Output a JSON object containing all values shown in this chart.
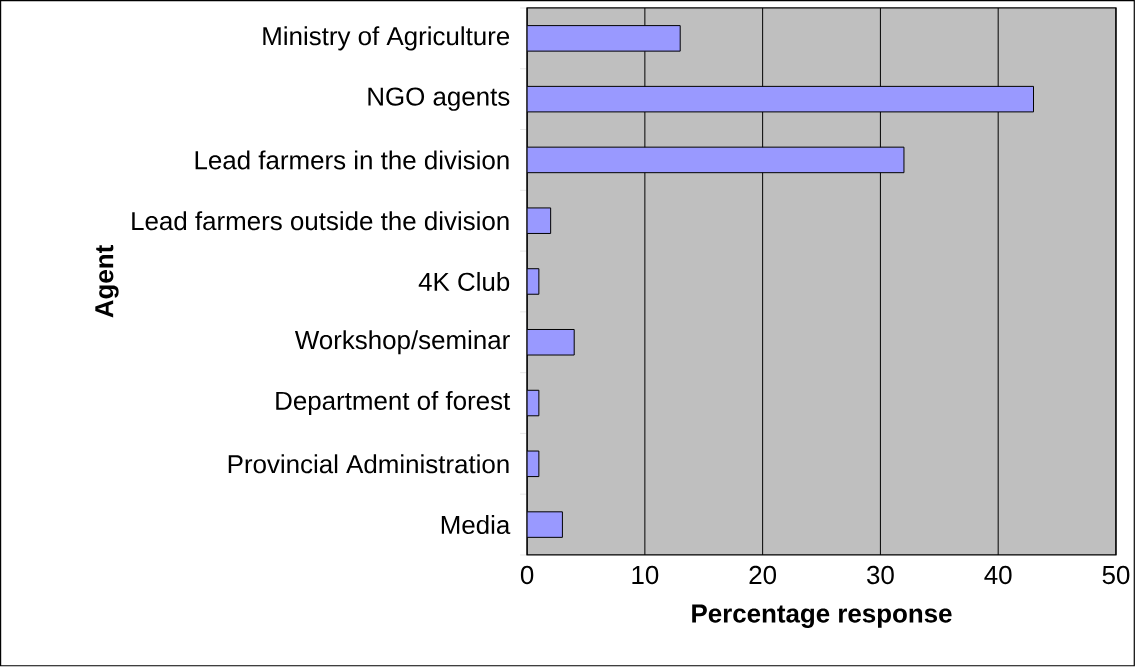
{
  "chart_data": {
    "type": "bar",
    "orientation": "horizontal",
    "categories": [
      "Ministry of Agriculture",
      "NGO agents",
      "Lead farmers in the division",
      "Lead farmers outside the division",
      "4K Club",
      "Workshop/seminar",
      "Department of forest",
      "Provincial Administration",
      "Media"
    ],
    "values": [
      13,
      43,
      32,
      2,
      1,
      4,
      1,
      1,
      3
    ],
    "color": "#9999ff",
    "xlabel": "Percentage response",
    "ylabel": "Agent",
    "xlim": [
      0,
      50
    ],
    "xticks": [
      0,
      10,
      20,
      30,
      40,
      50
    ],
    "grid": "x"
  }
}
